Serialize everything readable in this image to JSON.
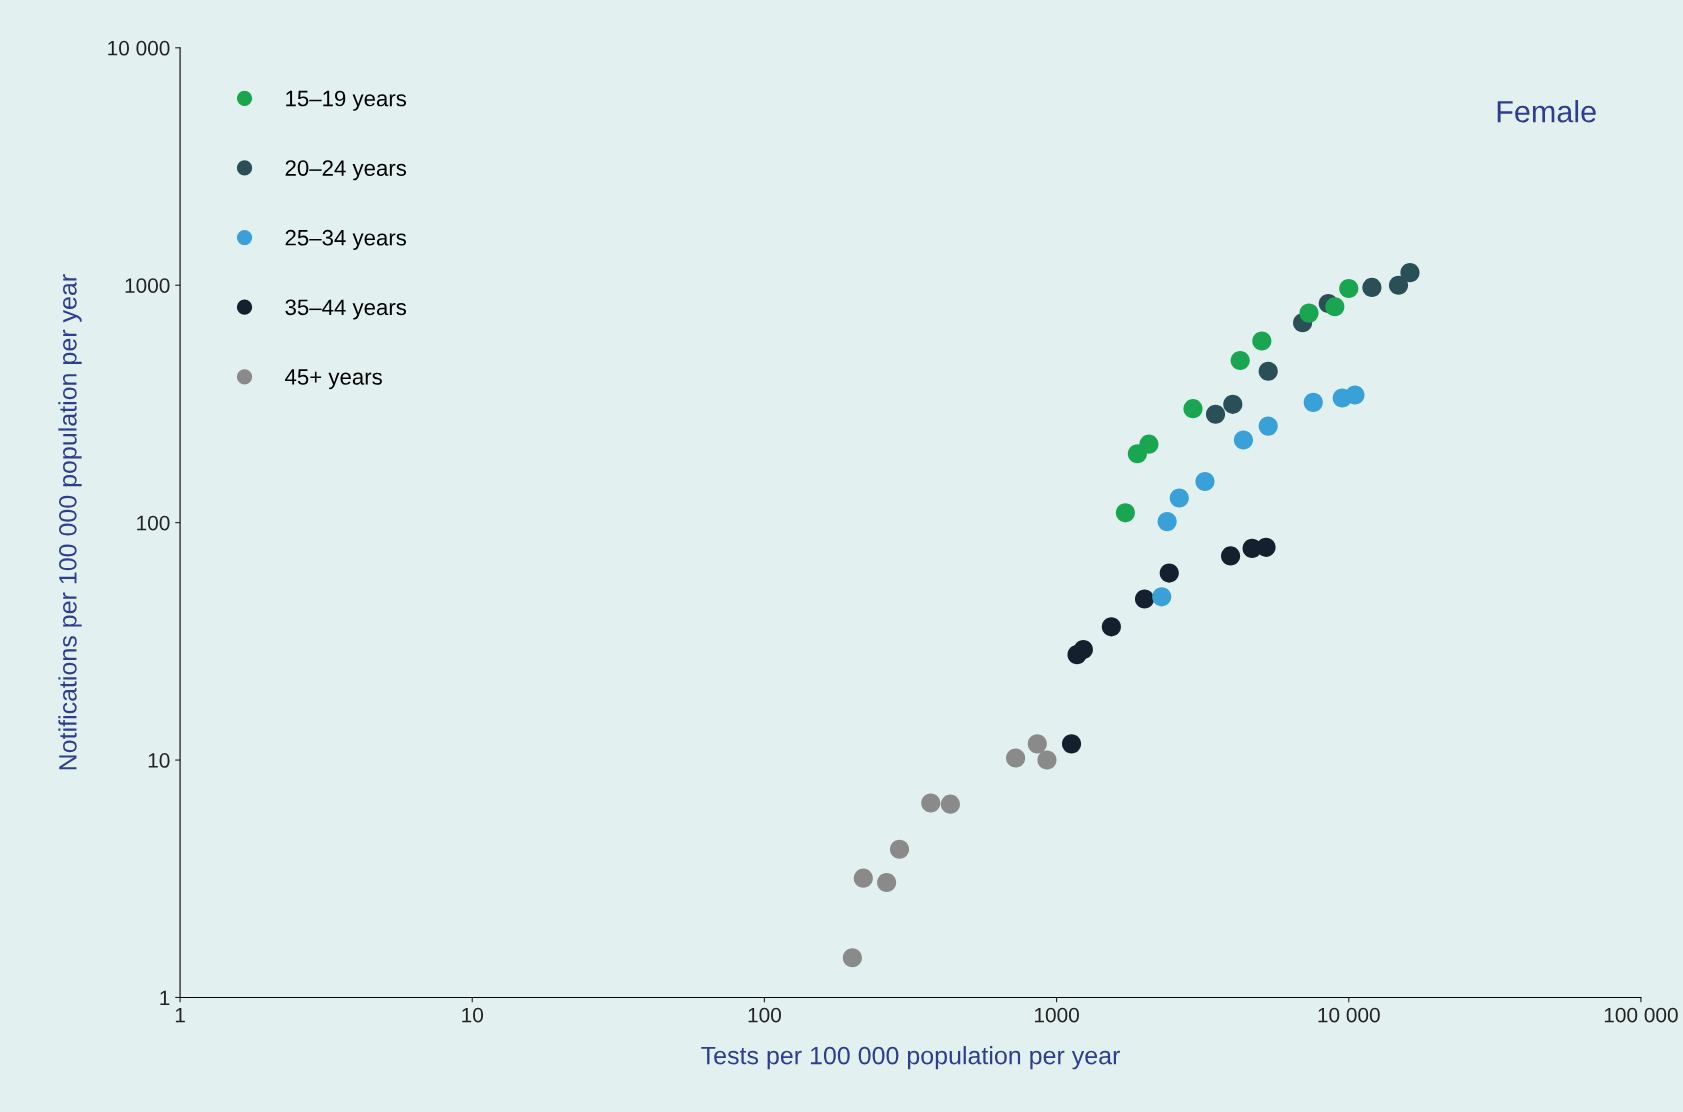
{
  "chart_data": {
    "type": "scatter",
    "xlabel": "Tests per 100 000 population per year",
    "ylabel": "Notifications per 100 000 population per year",
    "annotations": [
      "Female"
    ],
    "log": "xy",
    "grid": false,
    "legend": "top left",
    "marker": "circle",
    "xlim": [
      1,
      100000
    ],
    "xticks": [
      1,
      10,
      100,
      1000,
      {
        "value": 10000,
        "label": "10 000"
      },
      {
        "value": 100000,
        "label": "100 000"
      }
    ],
    "ylim": [
      1,
      10000
    ],
    "yticks": [
      1,
      10,
      100,
      1000,
      {
        "value": 10000,
        "label": "10 000"
      }
    ],
    "series": [
      {
        "name": "15–19 years",
        "color": "#1aa550",
        "x": [
          1720,
          1890,
          2070,
          2930,
          4250,
          5040,
          7310,
          8960,
          10000
        ],
        "values": [
          110,
          195,
          214,
          302,
          482,
          582,
          763,
          812,
          969
        ]
      },
      {
        "name": "20–24 years",
        "color": "#2a4f57",
        "x": [
          3500,
          4010,
          5300,
          6950,
          8510,
          12000,
          14800,
          16200
        ],
        "values": [
          286,
          315,
          434,
          695,
          838,
          979,
          1000,
          1130
        ]
      },
      {
        "name": "25–34 years",
        "color": "#3aa0d8",
        "x": [
          2290,
          2390,
          2630,
          3220,
          4360,
          5300,
          7560,
          9500,
          10500
        ],
        "values": [
          48.7,
          101,
          127,
          149,
          223,
          255,
          321,
          335,
          345
        ]
      },
      {
        "name": "35–44 years",
        "color": "#14202e",
        "x": [
          1125,
          1175,
          1235,
          1540,
          2000,
          2430,
          3940,
          4670,
          5210
        ],
        "values": [
          11.7,
          27.8,
          29.2,
          36.4,
          47.7,
          61.3,
          72.4,
          77.9,
          78.7
        ]
      },
      {
        "name": "45+ years",
        "color": "#8a8a8a",
        "x": [
          200,
          218,
          262,
          290,
          371,
          433,
          724,
          859,
          927
        ],
        "values": [
          1.47,
          3.18,
          3.05,
          4.21,
          6.59,
          6.52,
          10.2,
          11.7,
          10.0
        ]
      }
    ]
  }
}
